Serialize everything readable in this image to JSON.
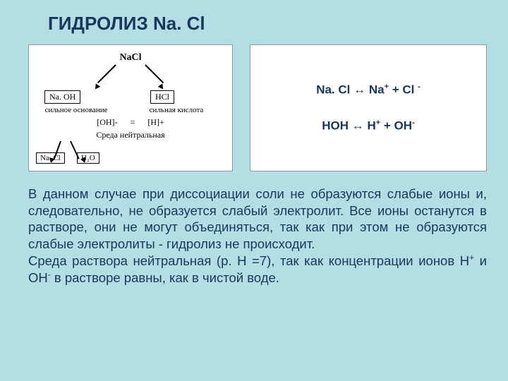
{
  "colors": {
    "slide_bg": "#b3dee3",
    "panel_bg": "#ffffff",
    "text_primary": "#19365d",
    "diagram_text": "#000000",
    "border": "#999999"
  },
  "title": "ГИДРОЛИЗ Na. Cl",
  "diagram": {
    "top": "NaCl",
    "left_box": "Na. ОН",
    "right_box": "HCl",
    "left_label": "сильное основание",
    "right_label": "сильная кислота",
    "ion_oh": "[OH]-",
    "ion_eq": "=",
    "ion_h": "[H]+",
    "env": "Среда нейтральная",
    "bottom_left": "Na. Cl",
    "bottom_right": "H₂O"
  },
  "equations": {
    "eq1_pre": "Na. Cl ↔ Na",
    "eq1_sup1": "+",
    "eq1_mid": " + Cl ",
    "eq1_sup2": "-",
    "eq2_pre": "HOH ↔ H",
    "eq2_sup1": "+",
    "eq2_mid": " + OH",
    "eq2_sup2": "-"
  },
  "body": {
    "p1": "В данном случае при диссоциации соли не образуются слабые ионы и, следовательно, не образуется слабый электролит. Все ионы останутся в растворе, они не могут объединяться, так как при этом не образуются  слабые электролиты  -  гидролиз  не  происходит.",
    "p2a": "Среда   раствора   нейтральная   (р. Н  =7),   так   как концентрации ионов H",
    "p2sup1": "+",
    "p2b": " и OH",
    "p2sup2": "-",
    "p2c": " в растворе равны, как в чистой  воде."
  }
}
